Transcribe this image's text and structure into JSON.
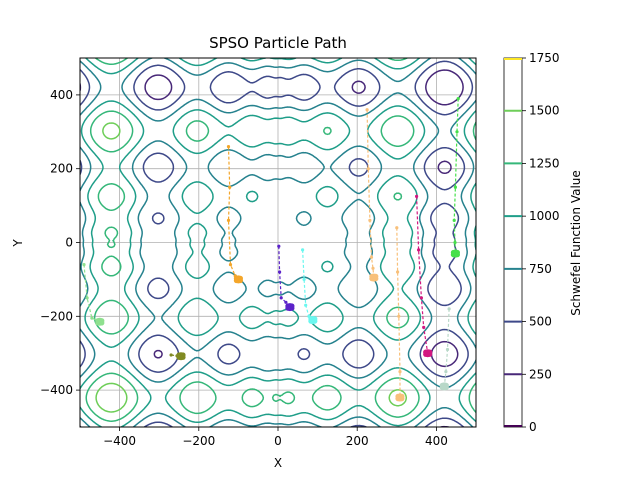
{
  "chart_data": {
    "type": "contour",
    "title": "SPSO Particle Path",
    "xlabel": "X",
    "ylabel": "Y",
    "xlim": [
      -500,
      500
    ],
    "ylim": [
      -500,
      500
    ],
    "xticks": [
      -400,
      -200,
      0,
      200,
      400
    ],
    "yticks": [
      -400,
      -200,
      0,
      200,
      400
    ],
    "grid": true,
    "colorbar": {
      "label": "Schwefel Function Value",
      "ticks": [
        0,
        250,
        500,
        750,
        1000,
        1250,
        1500,
        1750
      ],
      "levels": [
        {
          "value": 250,
          "color": "#482878"
        },
        {
          "value": 500,
          "color": "#3e4989"
        },
        {
          "value": 750,
          "color": "#26828e"
        },
        {
          "value": 1000,
          "color": "#1f9e89"
        },
        {
          "value": 1250,
          "color": "#35b779"
        },
        {
          "value": 1500,
          "color": "#6ece58"
        },
        {
          "value": 1750,
          "color": "#fde725"
        }
      ],
      "zero_color": "#440154"
    },
    "particle_paths": [
      {
        "color": "#f4a62a",
        "points": [
          [
            -125,
            260
          ],
          [
            -122,
            150
          ],
          [
            -125,
            60
          ],
          [
            -120,
            -60
          ],
          [
            -108,
            -90
          ],
          [
            -100,
            -100
          ]
        ]
      },
      {
        "color": "#f8c07a",
        "points": [
          [
            225,
            360
          ],
          [
            228,
            200
          ],
          [
            232,
            60
          ],
          [
            236,
            -40
          ],
          [
            240,
            -70
          ],
          [
            242,
            -95
          ]
        ]
      },
      {
        "color": "#f8c07a",
        "points": [
          [
            300,
            40
          ],
          [
            302,
            -80
          ],
          [
            305,
            -200
          ],
          [
            308,
            -350
          ],
          [
            308,
            -420
          ]
        ]
      },
      {
        "color": "#d21780",
        "points": [
          [
            350,
            125
          ],
          [
            355,
            -20
          ],
          [
            362,
            -150
          ],
          [
            368,
            -230
          ],
          [
            378,
            -300
          ]
        ]
      },
      {
        "color": "#46e04a",
        "points": [
          [
            455,
            390
          ],
          [
            452,
            300
          ],
          [
            448,
            150
          ],
          [
            445,
            60
          ],
          [
            447,
            0
          ],
          [
            448,
            -30
          ]
        ]
      },
      {
        "color": "#b8d8c8",
        "points": [
          [
            432,
            -180
          ],
          [
            428,
            -290
          ],
          [
            424,
            -350
          ],
          [
            420,
            -390
          ]
        ]
      },
      {
        "color": "#5b22c9",
        "points": [
          [
            2,
            -10
          ],
          [
            4,
            -80
          ],
          [
            8,
            -150
          ],
          [
            20,
            -162
          ],
          [
            30,
            -175
          ]
        ]
      },
      {
        "color": "#6af7ef",
        "points": [
          [
            62,
            -20
          ],
          [
            66,
            -100
          ],
          [
            70,
            -170
          ],
          [
            78,
            -200
          ],
          [
            88,
            -210
          ]
        ]
      },
      {
        "color": "#8fe08f",
        "points": [
          [
            -490,
            -60
          ],
          [
            -482,
            -150
          ],
          [
            -470,
            -205
          ],
          [
            -450,
            -215
          ]
        ]
      },
      {
        "color": "#808a22",
        "points": [
          [
            -270,
            -305
          ],
          [
            -255,
            -307
          ],
          [
            -245,
            -308
          ]
        ]
      }
    ]
  }
}
